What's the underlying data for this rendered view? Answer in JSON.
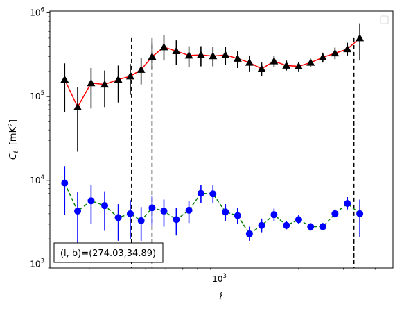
{
  "chart_data": {
    "type": "scatter",
    "xlabel": "ℓ",
    "ylabel": "C",
    "ylabel_sub": "ℓ",
    "ylabel_unit_main": "[mK",
    "ylabel_unit_sup": "2",
    "ylabel_unit_close": "]",
    "xscale": "log",
    "yscale": "log",
    "xlim": [
      210,
      4700
    ],
    "ylim": [
      900,
      1050000
    ],
    "x_tick_labels": [
      {
        "value": 1000,
        "base": "10",
        "exp": "3"
      }
    ],
    "y_tick_labels": [
      {
        "value": 1000,
        "base": "10",
        "exp": "3"
      },
      {
        "value": 10000,
        "base": "10",
        "exp": "4"
      },
      {
        "value": 100000,
        "base": "10",
        "exp": "5"
      },
      {
        "value": 1000000,
        "base": "10",
        "exp": "6"
      }
    ],
    "vlines": [
      440,
      530,
      3300
    ],
    "vline_top": 500000,
    "vline_color": "#000000",
    "annotation": "(l, b)=(274.03,34.89)",
    "legend_placement": "upper right",
    "series": [
      {
        "marker": "triangle",
        "color": "#000000",
        "line_color": "#ff0000",
        "line_style": "solid",
        "points": [
          {
            "x": 240,
            "y": 160000,
            "lo": 65000,
            "hi": 250000
          },
          {
            "x": 270,
            "y": 75000,
            "lo": 22000,
            "hi": 130000
          },
          {
            "x": 305,
            "y": 145000,
            "lo": 72000,
            "hi": 220000
          },
          {
            "x": 345,
            "y": 140000,
            "lo": 75000,
            "hi": 205000
          },
          {
            "x": 390,
            "y": 160000,
            "lo": 85000,
            "hi": 235000
          },
          {
            "x": 435,
            "y": 175000,
            "lo": 105000,
            "hi": 245000
          },
          {
            "x": 480,
            "y": 210000,
            "lo": 140000,
            "hi": 290000
          },
          {
            "x": 530,
            "y": 300000,
            "lo": 210000,
            "hi": 450000
          },
          {
            "x": 590,
            "y": 390000,
            "lo": 270000,
            "hi": 540000
          },
          {
            "x": 660,
            "y": 350000,
            "lo": 240000,
            "hi": 470000
          },
          {
            "x": 740,
            "y": 310000,
            "lo": 225000,
            "hi": 400000
          },
          {
            "x": 825,
            "y": 315000,
            "lo": 230000,
            "hi": 400000
          },
          {
            "x": 920,
            "y": 305000,
            "lo": 230000,
            "hi": 390000
          },
          {
            "x": 1030,
            "y": 315000,
            "lo": 240000,
            "hi": 395000
          },
          {
            "x": 1150,
            "y": 285000,
            "lo": 220000,
            "hi": 350000
          },
          {
            "x": 1280,
            "y": 255000,
            "lo": 200000,
            "hi": 310000
          },
          {
            "x": 1430,
            "y": 215000,
            "lo": 175000,
            "hi": 255000
          },
          {
            "x": 1600,
            "y": 265000,
            "lo": 225000,
            "hi": 305000
          },
          {
            "x": 1790,
            "y": 235000,
            "lo": 205000,
            "hi": 270000
          },
          {
            "x": 2000,
            "y": 230000,
            "lo": 200000,
            "hi": 260000
          },
          {
            "x": 2230,
            "y": 255000,
            "lo": 225000,
            "hi": 285000
          },
          {
            "x": 2490,
            "y": 295000,
            "lo": 255000,
            "hi": 335000
          },
          {
            "x": 2780,
            "y": 330000,
            "lo": 280000,
            "hi": 385000
          },
          {
            "x": 3110,
            "y": 370000,
            "lo": 310000,
            "hi": 440000
          },
          {
            "x": 3480,
            "y": 500000,
            "lo": 270000,
            "hi": 750000
          }
        ]
      },
      {
        "marker": "circle",
        "color": "#0000ff",
        "line_color": "#008000",
        "line_style": "dashed",
        "points": [
          {
            "x": 240,
            "y": 9300,
            "lo": 3900,
            "hi": 14800
          },
          {
            "x": 270,
            "y": 4300,
            "lo": 1500,
            "hi": 7200
          },
          {
            "x": 305,
            "y": 5700,
            "lo": 3000,
            "hi": 8900
          },
          {
            "x": 345,
            "y": 5000,
            "lo": 2500,
            "hi": 7400
          },
          {
            "x": 390,
            "y": 3600,
            "lo": 1900,
            "hi": 5200
          },
          {
            "x": 435,
            "y": 4000,
            "lo": 2000,
            "hi": 5800
          },
          {
            "x": 480,
            "y": 3300,
            "lo": 1900,
            "hi": 4800
          },
          {
            "x": 530,
            "y": 4700,
            "lo": 2900,
            "hi": 6500
          },
          {
            "x": 590,
            "y": 4300,
            "lo": 2800,
            "hi": 5900
          },
          {
            "x": 660,
            "y": 3400,
            "lo": 2200,
            "hi": 4700
          },
          {
            "x": 740,
            "y": 4400,
            "lo": 3100,
            "hi": 5700
          },
          {
            "x": 825,
            "y": 7000,
            "lo": 5400,
            "hi": 8800
          },
          {
            "x": 920,
            "y": 6900,
            "lo": 5400,
            "hi": 8700
          },
          {
            "x": 1030,
            "y": 4200,
            "lo": 3300,
            "hi": 5200
          },
          {
            "x": 1150,
            "y": 3800,
            "lo": 3000,
            "hi": 4700
          },
          {
            "x": 1280,
            "y": 2300,
            "lo": 1900,
            "hi": 2800
          },
          {
            "x": 1430,
            "y": 2900,
            "lo": 2400,
            "hi": 3500
          },
          {
            "x": 1600,
            "y": 3900,
            "lo": 3300,
            "hi": 4600
          },
          {
            "x": 1790,
            "y": 2900,
            "lo": 2600,
            "hi": 3300
          },
          {
            "x": 2000,
            "y": 3400,
            "lo": 3000,
            "hi": 3900
          },
          {
            "x": 2230,
            "y": 2800,
            "lo": 2500,
            "hi": 3100
          },
          {
            "x": 2490,
            "y": 2800,
            "lo": 2600,
            "hi": 3100
          },
          {
            "x": 2780,
            "y": 4000,
            "lo": 3600,
            "hi": 4500
          },
          {
            "x": 3110,
            "y": 5300,
            "lo": 4500,
            "hi": 6300
          },
          {
            "x": 3480,
            "y": 4000,
            "lo": 2100,
            "hi": 5900
          }
        ]
      }
    ]
  }
}
